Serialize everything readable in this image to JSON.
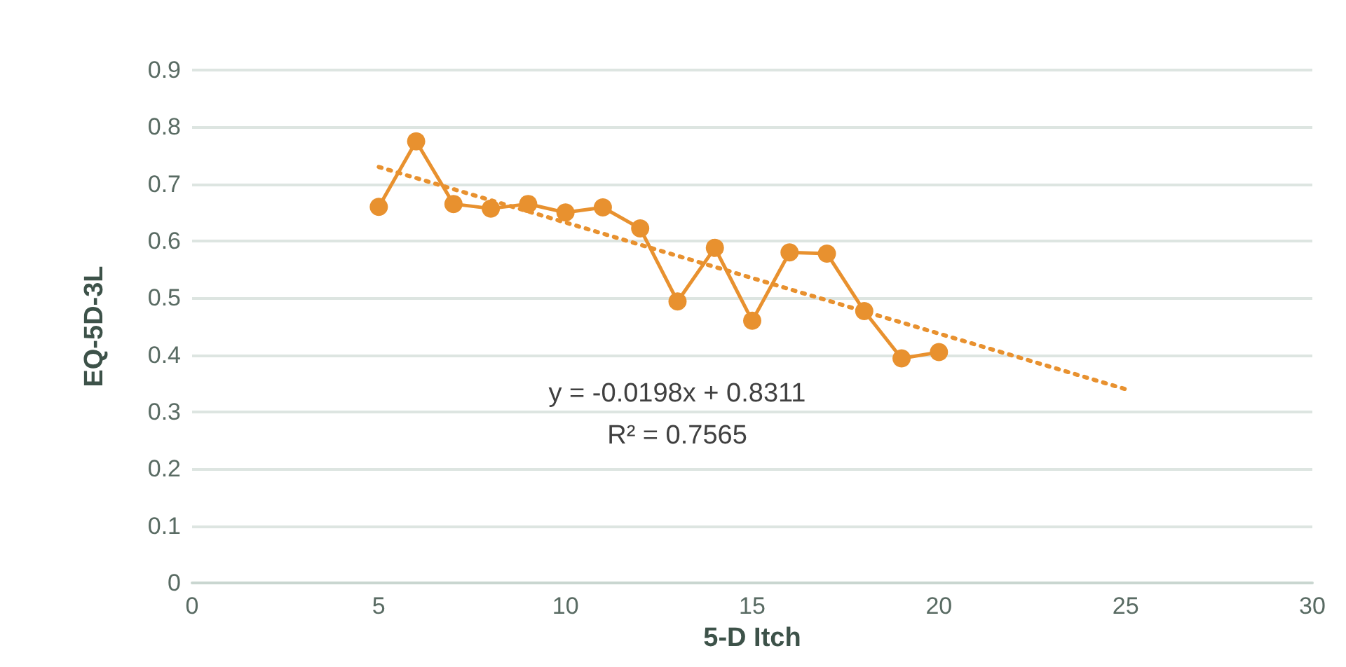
{
  "chart_data": {
    "type": "line",
    "xlabel": "5-D Itch",
    "ylabel": "EQ-5D-3L",
    "x": [
      5,
      6,
      7,
      8,
      9,
      10,
      11,
      12,
      13,
      14,
      15,
      16,
      17,
      18,
      19,
      20
    ],
    "series": [
      {
        "color": "#e8912f",
        "marker": "circle",
        "line_style": "solid",
        "values": [
          0.66,
          0.775,
          0.665,
          0.657,
          0.665,
          0.65,
          0.659,
          0.622,
          0.494,
          0.588,
          0.46,
          0.58,
          0.578,
          0.477,
          0.394,
          0.405
        ]
      },
      {
        "type": "line",
        "color": "#e8912f",
        "marker": "none",
        "line_style": "dotted",
        "x": [
          5,
          25
        ],
        "values": [
          0.73,
          0.34
        ]
      }
    ],
    "xlim": [
      0,
      30
    ],
    "xticks": [
      0,
      5,
      10,
      15,
      20,
      25,
      30
    ],
    "ylim": [
      0,
      0.9
    ],
    "yticks": [
      0,
      0.1,
      0.2,
      0.3,
      0.4,
      0.5,
      0.6,
      0.7,
      0.8,
      0.9
    ],
    "grid": "y",
    "annotations": [
      "y = -0.0198x + 0.8311",
      "R² = 0.7565"
    ]
  }
}
